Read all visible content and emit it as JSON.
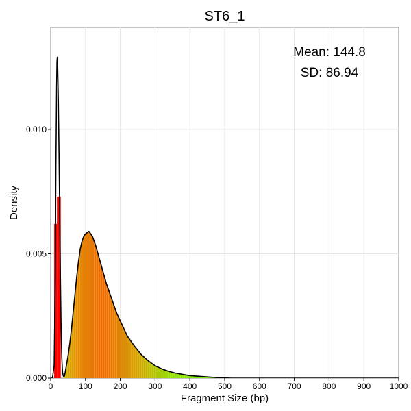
{
  "chart_data": {
    "type": "histogram-density",
    "title": "ST6_1",
    "xlabel": "Fragment Size (bp)",
    "ylabel": "Density",
    "xlim": [
      0,
      1000
    ],
    "ylim": [
      0,
      0.0141
    ],
    "x_ticks": [
      0,
      100,
      200,
      300,
      400,
      500,
      600,
      700,
      800,
      900,
      1000
    ],
    "y_ticks": [
      0.0,
      0.005,
      0.01
    ],
    "y_tick_labels": [
      "0.000",
      "0.005",
      "0.010"
    ],
    "grid": true,
    "annotations": {
      "mean": "Mean: 144.8",
      "sd": "SD: 86.94"
    },
    "colors": {
      "low_fragment": "#ff0000",
      "peak": "#ee6600",
      "tail": "#66ee00",
      "density_line": "#000000"
    },
    "red_bars": [
      {
        "x0": 10,
        "x1": 18,
        "density": 0.0062
      },
      {
        "x0": 18,
        "x1": 29,
        "density": 0.0073
      }
    ],
    "density_curve": [
      [
        0,
        0.0
      ],
      [
        5,
        0.0
      ],
      [
        10,
        0.0005
      ],
      [
        13,
        0.004
      ],
      [
        15,
        0.0085
      ],
      [
        17,
        0.0117
      ],
      [
        18,
        0.0127
      ],
      [
        19,
        0.0129
      ],
      [
        20,
        0.0126
      ],
      [
        22,
        0.0112
      ],
      [
        24,
        0.009
      ],
      [
        26,
        0.0065
      ],
      [
        28,
        0.004
      ],
      [
        30,
        0.002
      ],
      [
        32,
        0.0008
      ],
      [
        34,
        0.00025
      ],
      [
        36,
        0.0001
      ],
      [
        38,
        5e-05
      ],
      [
        40,
        0.0001
      ],
      [
        45,
        0.0005
      ],
      [
        50,
        0.0009
      ],
      [
        55,
        0.0014
      ],
      [
        60,
        0.002
      ],
      [
        65,
        0.0027
      ],
      [
        70,
        0.0034
      ],
      [
        75,
        0.0041
      ],
      [
        80,
        0.0047
      ],
      [
        85,
        0.0052
      ],
      [
        90,
        0.0055
      ],
      [
        95,
        0.0057
      ],
      [
        100,
        0.0058
      ],
      [
        105,
        0.00585
      ],
      [
        110,
        0.0059
      ],
      [
        115,
        0.0058
      ],
      [
        120,
        0.0057
      ],
      [
        130,
        0.0053
      ],
      [
        140,
        0.0048
      ],
      [
        150,
        0.0043
      ],
      [
        160,
        0.0038
      ],
      [
        170,
        0.0034
      ],
      [
        180,
        0.003
      ],
      [
        190,
        0.0026
      ],
      [
        200,
        0.0023
      ],
      [
        220,
        0.0017
      ],
      [
        240,
        0.0013
      ],
      [
        260,
        0.00095
      ],
      [
        280,
        0.0007
      ],
      [
        300,
        0.0005
      ],
      [
        320,
        0.00037
      ],
      [
        340,
        0.00027
      ],
      [
        360,
        0.0002
      ],
      [
        380,
        0.00015
      ],
      [
        400,
        0.0001
      ],
      [
        420,
        8e-05
      ],
      [
        440,
        6e-05
      ],
      [
        460,
        4e-05
      ],
      [
        480,
        2e-05
      ],
      [
        500,
        1e-05
      ],
      [
        520,
        0.0
      ],
      [
        1000,
        0.0
      ]
    ]
  }
}
